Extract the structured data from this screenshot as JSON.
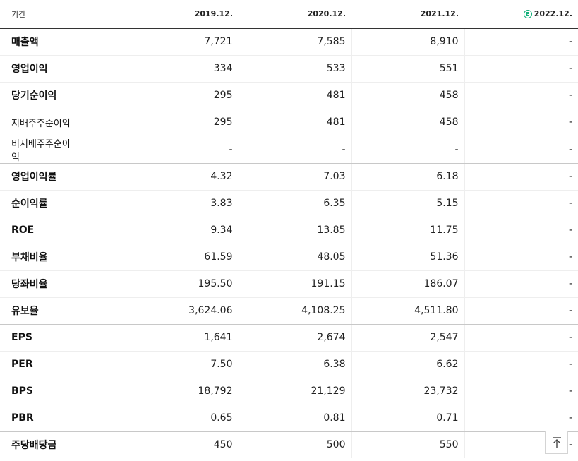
{
  "header": {
    "label": "기간",
    "periods": [
      "2019.12.",
      "2020.12.",
      "2021.12.",
      "2022.12."
    ],
    "estimate_mark": "E"
  },
  "rows": [
    {
      "label": "매출액",
      "values": [
        "7,721",
        "7,585",
        "8,910",
        "-"
      ]
    },
    {
      "label": "영업이익",
      "values": [
        "334",
        "533",
        "551",
        "-"
      ]
    },
    {
      "label": "당기순이익",
      "values": [
        "295",
        "481",
        "458",
        "-"
      ]
    },
    {
      "label": "지배주주순이익",
      "values": [
        "295",
        "481",
        "458",
        "-"
      ]
    },
    {
      "label": "비지배주주순이익",
      "values": [
        "-",
        "-",
        "-",
        "-"
      ]
    },
    {
      "label": "영업이익률",
      "values": [
        "4.32",
        "7.03",
        "6.18",
        "-"
      ]
    },
    {
      "label": "순이익률",
      "values": [
        "3.83",
        "6.35",
        "5.15",
        "-"
      ]
    },
    {
      "label": "ROE",
      "values": [
        "9.34",
        "13.85",
        "11.75",
        "-"
      ]
    },
    {
      "label": "부채비율",
      "values": [
        "61.59",
        "48.05",
        "51.36",
        "-"
      ]
    },
    {
      "label": "당좌비율",
      "values": [
        "195.50",
        "191.15",
        "186.07",
        "-"
      ]
    },
    {
      "label": "유보율",
      "values": [
        "3,624.06",
        "4,108.25",
        "4,511.80",
        "-"
      ]
    },
    {
      "label": "EPS",
      "values": [
        "1,641",
        "2,674",
        "2,547",
        "-"
      ]
    },
    {
      "label": "PER",
      "values": [
        "7.50",
        "6.38",
        "6.62",
        "-"
      ]
    },
    {
      "label": "BPS",
      "values": [
        "18,792",
        "21,129",
        "23,732",
        "-"
      ]
    },
    {
      "label": "PBR",
      "values": [
        "0.65",
        "0.81",
        "0.71",
        "-"
      ]
    },
    {
      "label": "주당배당금",
      "values": [
        "450",
        "500",
        "550",
        "-"
      ]
    }
  ],
  "icons": {
    "estimate": "estimate-badge-icon",
    "top_button": "arrow-up-to-top-icon"
  },
  "colors": {
    "accent": "#11b07a",
    "header_rule": "#333333"
  }
}
